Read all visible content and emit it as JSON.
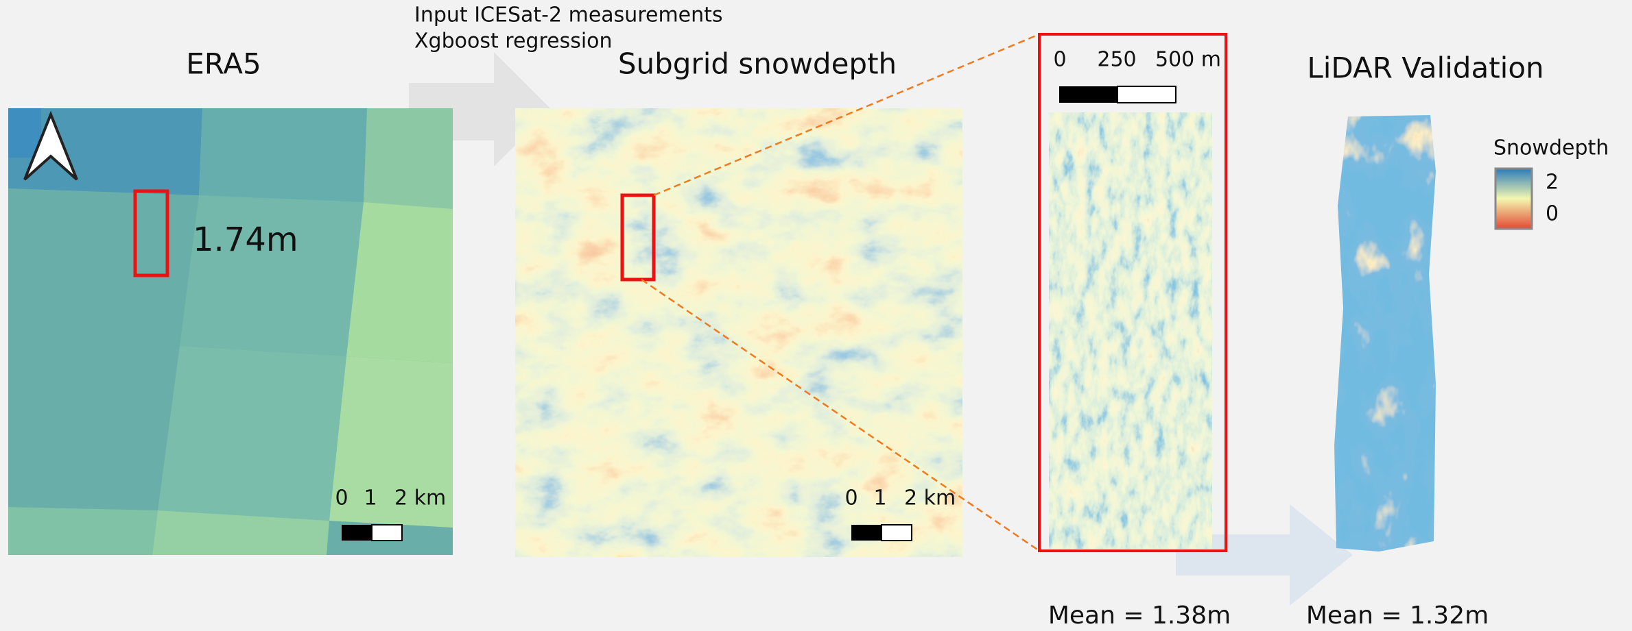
{
  "annotations": {
    "input_line_1": "Input ICESat-2 measurements",
    "input_line_2": "Xgboost regression"
  },
  "panels": [
    {
      "title": "ERA5",
      "point_label": "1.74m",
      "scale": {
        "ticks": [
          "0",
          "1",
          "2 km"
        ]
      }
    },
    {
      "title": "Subgrid snowdepth",
      "scale": {
        "ticks": [
          "0",
          "1",
          "2 km"
        ]
      }
    },
    {
      "scale": {
        "ticks": [
          "0",
          "250",
          "500 m"
        ]
      },
      "caption": "Mean = 1.38m"
    },
    {
      "title": "LiDAR Validation",
      "caption": "Mean = 1.32m",
      "legend": {
        "title": "Snowdepth",
        "max": "2",
        "min": "0"
      }
    }
  ]
}
